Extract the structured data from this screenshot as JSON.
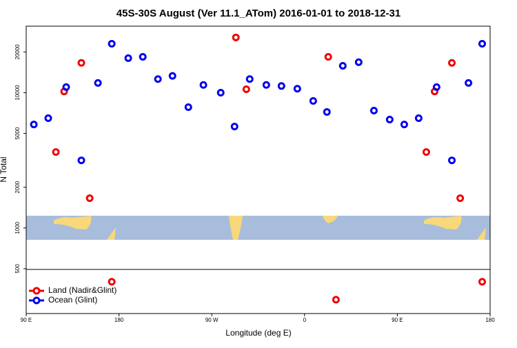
{
  "chart_data": {
    "type": "scatter",
    "title": "45S-30S August (Ver 11.1_ATom)   2016-01-01 to 2018-12-31",
    "x_label": "Longitude (deg E)",
    "y_label": "N Total",
    "xlim": [
      90,
      540
    ],
    "ylim": [
      233,
      31000
    ],
    "log_y": true,
    "legend": "bottom-left",
    "xticks": [
      {
        "value": 90,
        "label": "90 E"
      },
      {
        "value": 180,
        "label": "180"
      },
      {
        "value": 270,
        "label": "90 W"
      },
      {
        "value": 360,
        "label": "0"
      },
      {
        "value": 450,
        "label": "90 E"
      },
      {
        "value": 540,
        "label": "180"
      }
    ],
    "yticks": [
      500,
      1000,
      2000,
      5000,
      10000,
      20000
    ],
    "series": [
      {
        "name": "Land (Nadir&Glint)",
        "color": "#ee0000",
        "x": [
          118.8,
          126.8,
          143.5,
          151.6,
          173,
          293.4,
          303.5,
          383,
          390.5,
          478.1,
          486.2,
          502.9,
          511,
          532.3
        ],
        "values": [
          3640,
          10200,
          16600,
          1660,
          400,
          25600,
          10600,
          18400,
          295,
          3640,
          10200,
          16600,
          1660,
          400
        ]
      },
      {
        "name": "Ocean (Glint)",
        "color": "#0000ee",
        "x": [
          97.4,
          111.4,
          128.8,
          143.5,
          159.6,
          173,
          189,
          203.1,
          217.8,
          231.9,
          247.3,
          261.9,
          278.7,
          292.1,
          306.8,
          322.9,
          337.6,
          353,
          368.4,
          381.7,
          397.1,
          412.5,
          427.3,
          442.6,
          456.7,
          470.7,
          488.1,
          502.9,
          519,
          532.3
        ],
        "values": [
          5820,
          6480,
          11000,
          3160,
          11800,
          23000,
          18000,
          18400,
          12600,
          13300,
          7810,
          11400,
          10000,
          5620,
          12600,
          11400,
          11200,
          10700,
          8690,
          7200,
          15800,
          16800,
          7370,
          6330,
          5820,
          6480,
          11000,
          3160,
          11800,
          23000
        ]
      }
    ]
  }
}
